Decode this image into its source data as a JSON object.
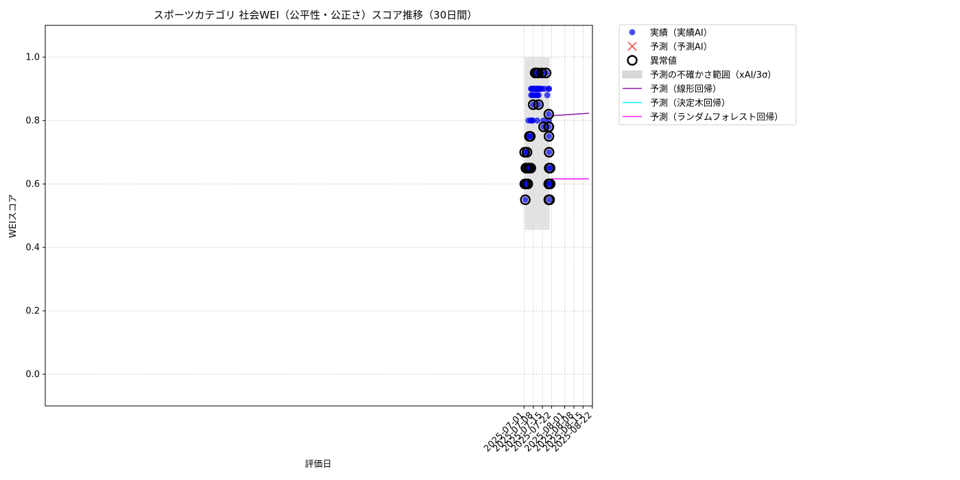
{
  "chart_data": {
    "type": "scatter",
    "title": "スポーツカテゴリ 社会WEI（公平性・公正さ）スコア推移（30日間）",
    "xlabel": "評価日",
    "ylabel": "WEIスコア",
    "x_axis": {
      "type": "date",
      "range": [
        "2024-06-30T14:00",
        "2025-08-22T04:00"
      ],
      "ticks": [
        "2025-07-01",
        "2025-07-08",
        "2025-07-15",
        "2025-07-22",
        "2025-08-01",
        "2025-08-08",
        "2025-08-15",
        "2025-08-22"
      ]
    },
    "y_axis": {
      "range": [
        -0.1,
        1.1
      ],
      "ticks": [
        0.0,
        0.2,
        0.4,
        0.6,
        0.8,
        1.0
      ],
      "tick_labels": [
        "0.0",
        "0.2",
        "0.4",
        "0.6",
        "0.8",
        "1.0"
      ]
    },
    "grid": true,
    "legend_placement": "outside top-right",
    "legend": [
      {
        "key": "actual",
        "label": "実績（実績AI）",
        "symbol": "dot",
        "color": "#0000ee"
      },
      {
        "key": "predicted",
        "label": "予測（予測AI）",
        "symbol": "x",
        "color": "#ff2222"
      },
      {
        "key": "anomaly",
        "label": "異常値",
        "symbol": "ring",
        "color": "#000000"
      },
      {
        "key": "uncertainty",
        "label": "予測の不確かさ範囲（xAI/3σ）",
        "symbol": "band",
        "color": "#d9d9d9"
      },
      {
        "key": "linear",
        "label": "予測（線形回帰）",
        "symbol": "line",
        "color": "#8b1fa8"
      },
      {
        "key": "tree",
        "label": "予測（決定木回帰）",
        "symbol": "line",
        "color": "#00ffff"
      },
      {
        "key": "forest",
        "label": "予測（ランダムフォレスト回帰）",
        "symbol": "line",
        "color": "#ff22ff"
      }
    ],
    "uncertainty_band": {
      "x_start": "2025-07-01T12:00",
      "x_end": "2025-07-20T12:00",
      "y_low": 0.455,
      "y_high": 1.0
    },
    "actual_points": [
      [
        "2025-07-01T10:00",
        0.7
      ],
      [
        "2025-07-01T12:00",
        0.6
      ],
      [
        "2025-07-01T22:00",
        0.55
      ],
      [
        "2025-07-02T08:00",
        0.65
      ],
      [
        "2025-07-02T10:00",
        0.6
      ],
      [
        "2025-07-02T20:00",
        0.65
      ],
      [
        "2025-07-03T06:00",
        0.7
      ],
      [
        "2025-07-03T08:00",
        0.7
      ],
      [
        "2025-07-03T20:00",
        0.6
      ],
      [
        "2025-07-04T06:00",
        0.65
      ],
      [
        "2025-07-04T08:00",
        0.8
      ],
      [
        "2025-07-04T18:00",
        0.65
      ],
      [
        "2025-07-05T00:00",
        0.75
      ],
      [
        "2025-07-05T02:00",
        0.65
      ],
      [
        "2025-07-05T06:00",
        0.75
      ],
      [
        "2025-07-05T18:00",
        0.75
      ],
      [
        "2025-07-06T04:00",
        0.65
      ],
      [
        "2025-07-06T06:00",
        0.8
      ],
      [
        "2025-07-06T08:00",
        0.9
      ],
      [
        "2025-07-06T12:00",
        0.88
      ],
      [
        "2025-07-06T16:00",
        0.9
      ],
      [
        "2025-07-06T20:00",
        0.88
      ],
      [
        "2025-07-07T02:00",
        0.9
      ],
      [
        "2025-07-07T08:00",
        0.8
      ],
      [
        "2025-07-07T10:00",
        0.8
      ],
      [
        "2025-07-07T22:00",
        0.85
      ],
      [
        "2025-07-08T00:00",
        0.9
      ],
      [
        "2025-07-08T06:00",
        0.88
      ],
      [
        "2025-07-08T12:00",
        0.9
      ],
      [
        "2025-07-08T20:00",
        0.9
      ],
      [
        "2025-07-09T06:00",
        0.9
      ],
      [
        "2025-07-09T10:00",
        0.95
      ],
      [
        "2025-07-09T16:00",
        0.9
      ],
      [
        "2025-07-10T00:00",
        0.88
      ],
      [
        "2025-07-10T04:00",
        0.9
      ],
      [
        "2025-07-10T08:00",
        0.88
      ],
      [
        "2025-07-10T12:00",
        0.95
      ],
      [
        "2025-07-10T16:00",
        0.9
      ],
      [
        "2025-07-11T00:00",
        0.8
      ],
      [
        "2025-07-11T04:00",
        0.9
      ],
      [
        "2025-07-11T08:00",
        0.88
      ],
      [
        "2025-07-11T10:00",
        0.9
      ],
      [
        "2025-07-11T14:00",
        0.95
      ],
      [
        "2025-07-12T00:00",
        0.85
      ],
      [
        "2025-07-12T02:00",
        0.88
      ],
      [
        "2025-07-12T10:00",
        0.9
      ],
      [
        "2025-07-12T16:00",
        0.9
      ],
      [
        "2025-07-13T00:00",
        0.9
      ],
      [
        "2025-07-13T14:00",
        0.9
      ],
      [
        "2025-07-14T12:00",
        0.95
      ],
      [
        "2025-07-14T14:00",
        0.9
      ],
      [
        "2025-07-15T18:00",
        0.8
      ],
      [
        "2025-07-15T20:00",
        0.78
      ],
      [
        "2025-07-16T16:00",
        0.9
      ],
      [
        "2025-07-17T18:00",
        0.95
      ],
      [
        "2025-07-18T18:00",
        0.88
      ],
      [
        "2025-07-19T16:00",
        0.9
      ],
      [
        "2025-07-19T18:00",
        0.78
      ],
      [
        "2025-07-19T20:00",
        0.82
      ],
      [
        "2025-07-19T22:00",
        0.8
      ],
      [
        "2025-07-20T00:00",
        0.9
      ],
      [
        "2025-07-20T02:00",
        0.75
      ],
      [
        "2025-07-20T04:00",
        0.7
      ],
      [
        "2025-07-20T06:00",
        0.65
      ],
      [
        "2025-07-20T08:00",
        0.6
      ],
      [
        "2025-07-20T10:00",
        0.55
      ],
      [
        "2025-07-20T12:00",
        0.6
      ],
      [
        "2025-07-20T20:00",
        0.65
      ],
      [
        "2025-07-20T22:00",
        0.6
      ]
    ],
    "anomaly_points": [
      [
        "2025-07-01T10:00",
        0.7
      ],
      [
        "2025-07-01T12:00",
        0.6
      ],
      [
        "2025-07-01T22:00",
        0.55
      ],
      [
        "2025-07-02T08:00",
        0.65
      ],
      [
        "2025-07-02T10:00",
        0.6
      ],
      [
        "2025-07-02T20:00",
        0.65
      ],
      [
        "2025-07-03T06:00",
        0.7
      ],
      [
        "2025-07-03T20:00",
        0.6
      ],
      [
        "2025-07-04T06:00",
        0.65
      ],
      [
        "2025-07-04T18:00",
        0.65
      ],
      [
        "2025-07-05T00:00",
        0.75
      ],
      [
        "2025-07-05T02:00",
        0.65
      ],
      [
        "2025-07-05T18:00",
        0.75
      ],
      [
        "2025-07-06T04:00",
        0.65
      ],
      [
        "2025-07-07T22:00",
        0.85
      ],
      [
        "2025-07-09T10:00",
        0.95
      ],
      [
        "2025-07-10T12:00",
        0.95
      ],
      [
        "2025-07-11T14:00",
        0.95
      ],
      [
        "2025-07-12T00:00",
        0.85
      ],
      [
        "2025-07-14T12:00",
        0.95
      ],
      [
        "2025-07-15T20:00",
        0.78
      ],
      [
        "2025-07-17T18:00",
        0.95
      ],
      [
        "2025-07-19T18:00",
        0.78
      ],
      [
        "2025-07-19T20:00",
        0.82
      ],
      [
        "2025-07-19T22:00",
        0.78
      ],
      [
        "2025-07-20T00:00",
        0.75
      ],
      [
        "2025-07-20T02:00",
        0.7
      ],
      [
        "2025-07-20T04:00",
        0.65
      ],
      [
        "2025-07-20T06:00",
        0.6
      ],
      [
        "2025-07-20T08:00",
        0.55
      ],
      [
        "2025-07-20T10:00",
        0.6
      ],
      [
        "2025-07-20T12:00",
        0.55
      ],
      [
        "2025-07-20T20:00",
        0.65
      ],
      [
        "2025-07-20T22:00",
        0.6
      ],
      [
        "2025-07-19T18:00",
        0.6
      ],
      [
        "2025-07-19T20:00",
        0.55
      ]
    ],
    "predicted_points": [],
    "series": [
      {
        "name": "予測（線形回帰）",
        "color": "#8b1fa8",
        "x": [
          "2025-07-21T20:00",
          "2025-08-19T12:00"
        ],
        "y": [
          0.815,
          0.823
        ]
      },
      {
        "name": "予測（決定木回帰）",
        "color": "#00ffff",
        "x": [
          "2025-07-21T20:00",
          "2025-08-19T12:00"
        ],
        "y": [
          0.616,
          0.616
        ]
      },
      {
        "name": "予測（ランダムフォレスト回帰）",
        "color": "#ff22ff",
        "x": [
          "2025-07-21T20:00",
          "2025-08-19T12:00"
        ],
        "y": [
          0.616,
          0.616
        ]
      }
    ]
  }
}
